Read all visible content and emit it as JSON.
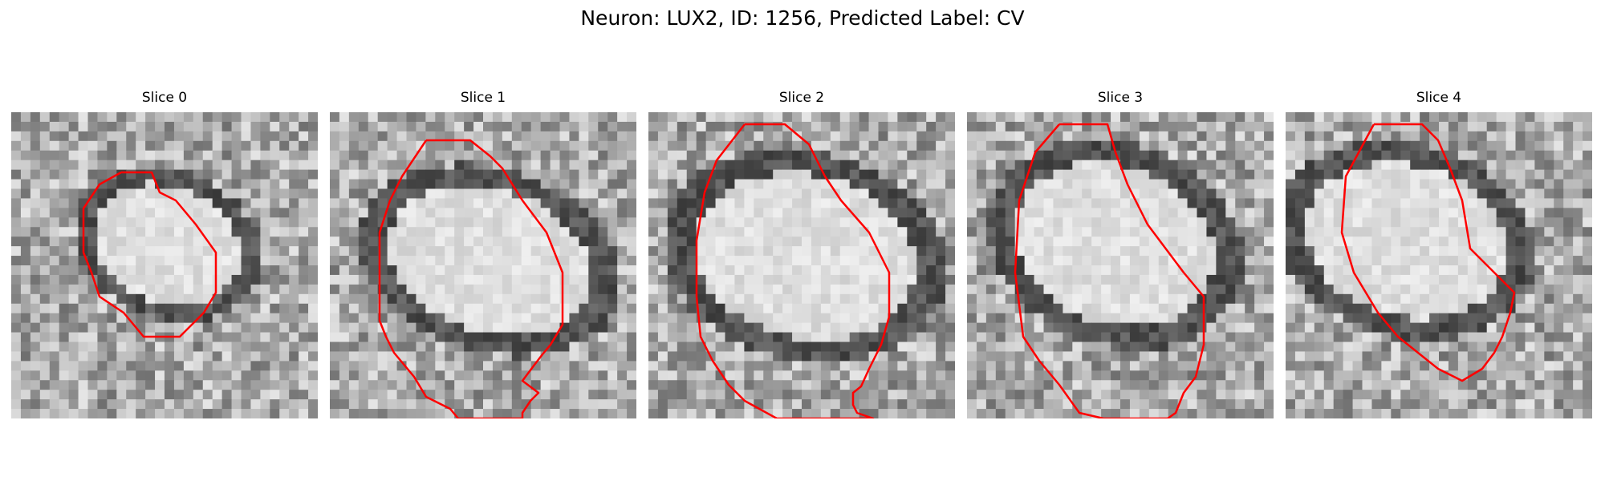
{
  "figure": {
    "title": "Neuron: LUX2, ID: 1256, Predicted Label: CV"
  },
  "panels": [
    {
      "title": "Slice 0"
    },
    {
      "title": "Slice 1"
    },
    {
      "title": "Slice 2"
    },
    {
      "title": "Slice 3"
    },
    {
      "title": "Slice 4"
    }
  ],
  "colors": {
    "contour": "#ff0000",
    "background": "#ffffff",
    "colormap": "gray"
  }
}
